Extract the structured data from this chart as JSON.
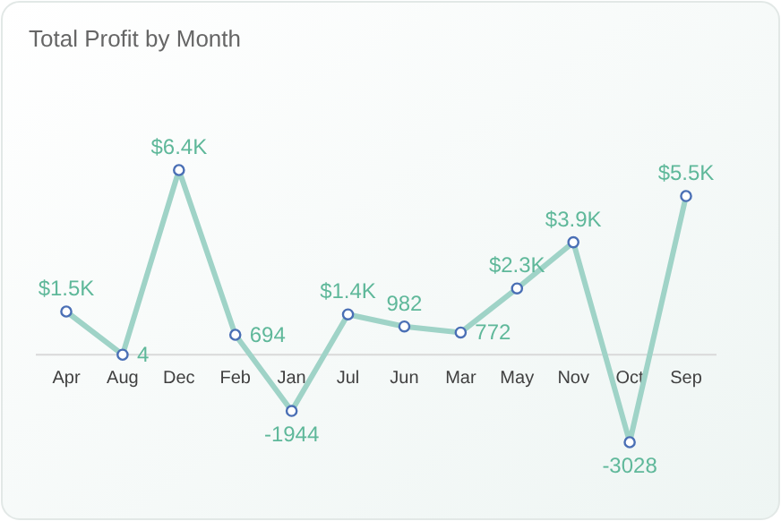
{
  "chart_data": {
    "type": "line",
    "title": "Total Profit by Month",
    "categories": [
      "Apr",
      "Aug",
      "Dec",
      "Feb",
      "Jan",
      "Jul",
      "Jun",
      "Mar",
      "May",
      "Nov",
      "Oct",
      "Sep"
    ],
    "series": [
      {
        "color": "#9fd3c7",
        "values": [
          1500,
          4,
          6400,
          694,
          -1944,
          1400,
          982,
          772,
          2300,
          3900,
          -3028,
          5500
        ],
        "value_labels": [
          "$1.5K",
          "4",
          "$6.4K",
          "694",
          "-1944",
          "$1.4K",
          "982",
          "772",
          "$2.3K",
          "$3.9K",
          "-3028",
          "$5.5K"
        ]
      }
    ],
    "relative": false,
    "marker": "circle",
    "line_style": "solid"
  }
}
